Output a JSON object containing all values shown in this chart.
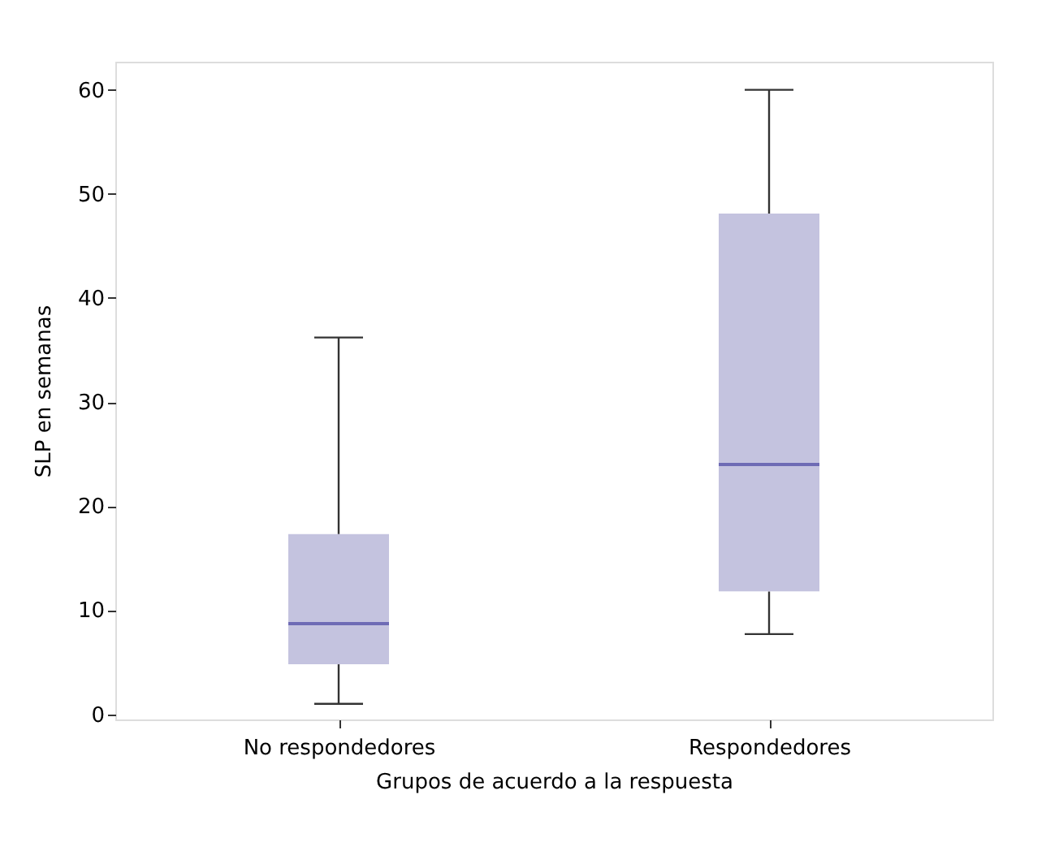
{
  "chart_data": {
    "type": "box",
    "xlabel": "Grupos de acuerdo a la respuesta",
    "ylabel": "SLP en semanas",
    "categories": [
      "No respondedores",
      "Respondedores"
    ],
    "boxes": [
      {
        "low": 1,
        "q1": 4.8,
        "median": 8.7,
        "q3": 17.3,
        "high": 36.2
      },
      {
        "low": 7.7,
        "q1": 11.8,
        "median": 24,
        "q3": 48.1,
        "high": 60
      }
    ],
    "color": "#c4c3df",
    "ylim": [
      -0.5,
      62.7
    ],
    "yticks": [
      0,
      10,
      20,
      30,
      40,
      50,
      60
    ],
    "grid": false
  }
}
